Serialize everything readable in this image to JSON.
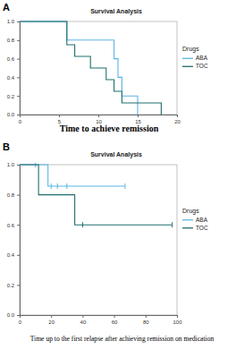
{
  "chart_data": [
    {
      "type": "line",
      "panel_label": "A",
      "title": "Survival Analysis",
      "x_label": "Time to achieve remission",
      "legend": "right",
      "legend_title": "Drugs",
      "line_style": "step",
      "xlim": [
        0,
        20
      ],
      "xticks": [
        0,
        5,
        10,
        15,
        20
      ],
      "ylim": [
        0,
        1
      ],
      "yticks": [
        {
          "value": 0,
          "label": "0.0"
        },
        0.2,
        0.4,
        0.6,
        0.8,
        {
          "value": 1,
          "label": "1.0"
        }
      ],
      "series": [
        {
          "name": "ABA",
          "color": "#5bb5e6",
          "x": [
            0,
            6,
            12,
            12.5,
            13,
            15
          ],
          "values": [
            1,
            0.8,
            0.6,
            0.4,
            0.2,
            0
          ]
        },
        {
          "name": "TOC",
          "color": "#1f6e6e",
          "x": [
            0,
            6,
            7,
            9,
            11,
            12,
            13,
            18
          ],
          "values": [
            1,
            0.75,
            0.625,
            0.5,
            0.375,
            0.25,
            0.125,
            0
          ]
        }
      ]
    },
    {
      "type": "line",
      "panel_label": "B",
      "title": "Survival Analysis",
      "x_label": "Time up to the first relapse after achieving remission on medication",
      "legend": "right",
      "legend_title": "Drugs",
      "line_style": "step",
      "xlim": [
        0,
        100
      ],
      "xticks": [
        0,
        20,
        40,
        60,
        80,
        100
      ],
      "ylim": [
        0,
        1
      ],
      "yticks": [
        {
          "value": 0,
          "label": "0.0"
        },
        0.2,
        0.4,
        0.6,
        0.8,
        {
          "value": 1,
          "label": "1.0"
        }
      ],
      "series": [
        {
          "name": "ABA",
          "color": "#5bb5e6",
          "x": [
            0,
            18,
            67
          ],
          "values": [
            1,
            0.857,
            0.857
          ],
          "censored_x": [
            10,
            20,
            24,
            30,
            67
          ],
          "censored_y": [
            1,
            0.857,
            0.857,
            0.857,
            0.857
          ]
        },
        {
          "name": "TOC",
          "color": "#1f6e6e",
          "x": [
            0,
            12,
            35,
            97
          ],
          "values": [
            1,
            0.8,
            0.6,
            0.6
          ],
          "censored_x": [
            40,
            97
          ],
          "censored_y": [
            0.6,
            0.6
          ]
        }
      ]
    }
  ]
}
